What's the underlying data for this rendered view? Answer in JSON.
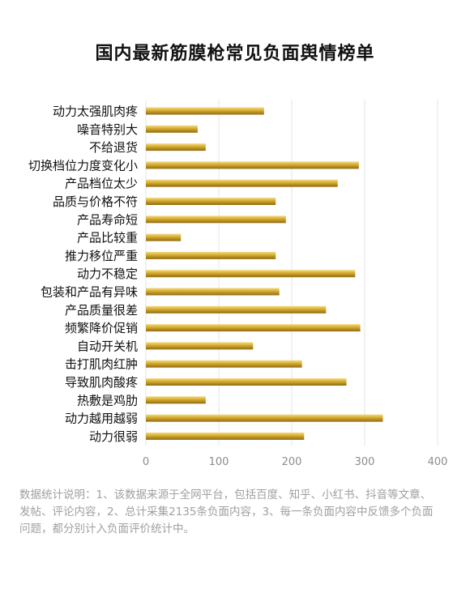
{
  "chart_data": {
    "type": "bar",
    "orientation": "horizontal",
    "title": "国内最新筋膜枪常见负面舆情榜单",
    "categories": [
      "动力太强肌肉疼",
      "噪音特别大",
      "不给退货",
      "切换档位力度变化小",
      "产品档位太少",
      "品质与价格不符",
      "产品寿命短",
      "产品比较重",
      "推力移位严重",
      "动力不稳定",
      "包装和产品有异味",
      "产品质量很差",
      "频繁降价促销",
      "自动开关机",
      "击打肌肉红肿",
      "导致肌肉酸疼",
      "热敷是鸡肋",
      "动力越用越弱",
      "动力很弱"
    ],
    "values": [
      162,
      71,
      82,
      292,
      263,
      178,
      192,
      48,
      178,
      287,
      183,
      247,
      294,
      147,
      214,
      275,
      82,
      325,
      217
    ],
    "xlim": [
      0,
      400
    ],
    "xticks": [
      0,
      100,
      200,
      300,
      400
    ],
    "grid": true,
    "bar_color": "#d4a92c",
    "footnote": "数据统计说明：1、该数据来源于全网平台，包括百度、知乎、小红书、抖音等文章、发帖、评论内容，2、总计采集2135条负面内容，3、每一条负面内容中反馈多个负面问题，都分别计入负面评价统计中。"
  }
}
